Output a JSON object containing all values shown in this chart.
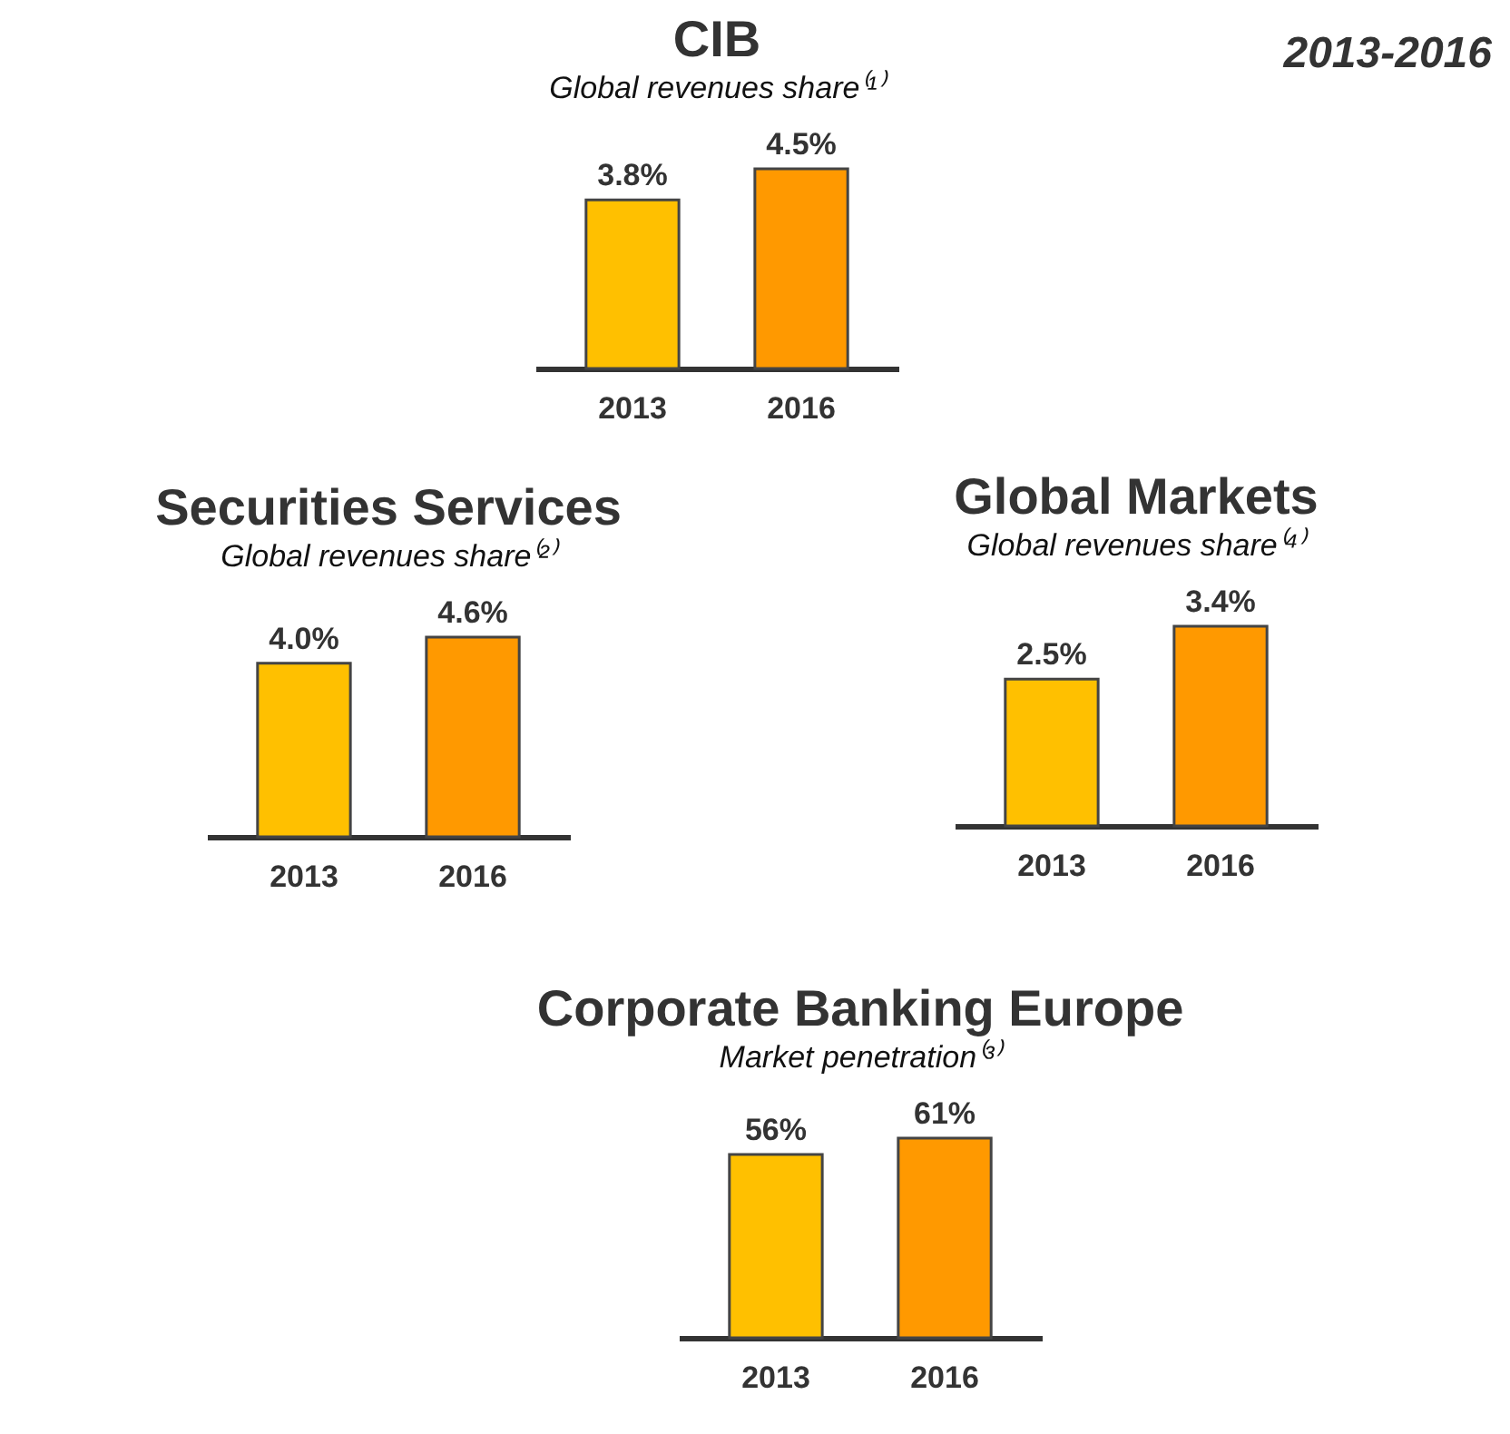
{
  "chart_data": [
    {
      "type": "bar",
      "title": "CIB",
      "subtitle": "Global revenues share⁽¹⁾",
      "annotations": [
        "2013-2016"
      ],
      "categories": [
        "2013",
        "2016"
      ],
      "values": [
        3.8,
        4.5
      ],
      "colors": [
        "#ffc000",
        "#ff9900"
      ],
      "value_labels": [
        "3.8%",
        "4.5%"
      ]
    },
    {
      "type": "bar",
      "title": "Securities Services",
      "subtitle": "Global revenues share⁽²⁾",
      "categories": [
        "2013",
        "2016"
      ],
      "values": [
        4.0,
        4.6
      ],
      "colors": [
        "#ffc000",
        "#ff9900"
      ],
      "value_labels": [
        "4.0%",
        "4.6%"
      ]
    },
    {
      "type": "bar",
      "title": "Global Markets",
      "subtitle": "Global revenues share⁽⁴⁾",
      "categories": [
        "2013",
        "2016"
      ],
      "values": [
        2.5,
        3.4
      ],
      "colors": [
        "#ffc000",
        "#ff9900"
      ],
      "value_labels": [
        "2.5%",
        "3.4%"
      ]
    },
    {
      "type": "bar",
      "title": "Corporate Banking Europe",
      "subtitle": "Market penetration⁽³⁾",
      "categories": [
        "2013",
        "2016"
      ],
      "values": [
        56,
        61
      ],
      "colors": [
        "#ffc000",
        "#ff9900"
      ],
      "value_labels": [
        "56%",
        "61%"
      ]
    }
  ]
}
